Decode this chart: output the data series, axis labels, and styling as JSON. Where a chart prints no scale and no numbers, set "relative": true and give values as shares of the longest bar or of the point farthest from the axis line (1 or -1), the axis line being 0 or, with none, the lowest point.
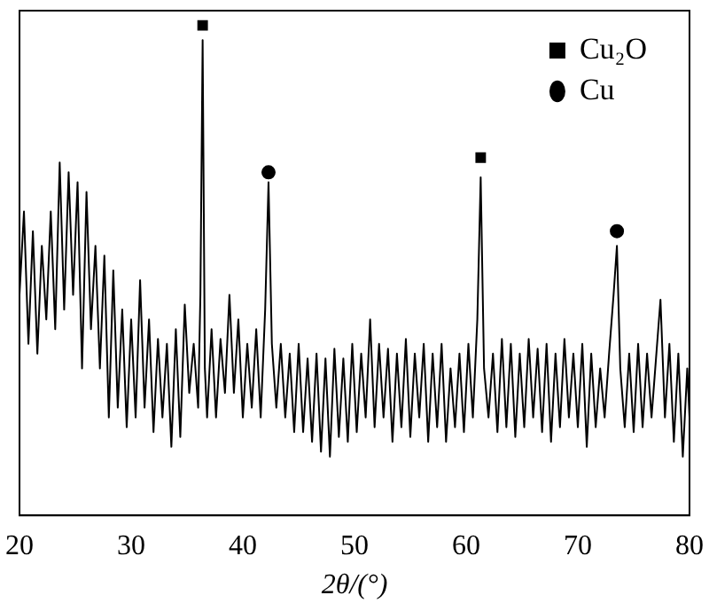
{
  "chart_data": {
    "type": "line",
    "relative": true,
    "xlabel": "2θ/(°)",
    "xlim": [
      20,
      80
    ],
    "xticks": [
      20,
      30,
      40,
      50,
      60,
      70,
      80
    ],
    "grid": false,
    "legend": "top right",
    "tick_labels": "x",
    "series": [
      {
        "type": "line",
        "color": "#000000",
        "marker": "none",
        "x": [
          20,
          20.4,
          20.8,
          21.2,
          21.6,
          22,
          22.4,
          22.8,
          23.2,
          23.6,
          24,
          24.4,
          24.8,
          25.2,
          25.6,
          26,
          26.4,
          26.8,
          27.2,
          27.6,
          28,
          28.4,
          28.8,
          29.2,
          29.6,
          30,
          30.4,
          30.8,
          31.2,
          31.6,
          32,
          32.4,
          32.8,
          33.2,
          33.6,
          34,
          34.4,
          34.8,
          35.2,
          35.6,
          36,
          36.2,
          36.4,
          36.6,
          36.8,
          37.2,
          37.6,
          38,
          38.4,
          38.8,
          39.2,
          39.6,
          40,
          40.4,
          40.8,
          41.2,
          41.6,
          42,
          42.3,
          42.6,
          43,
          43.4,
          43.8,
          44.2,
          44.6,
          45,
          45.4,
          45.8,
          46.2,
          46.6,
          47,
          47.4,
          47.8,
          48.2,
          48.6,
          49,
          49.4,
          49.8,
          50.2,
          50.6,
          51,
          51.4,
          51.8,
          52.2,
          52.6,
          53,
          53.4,
          53.8,
          54.2,
          54.6,
          55,
          55.4,
          55.8,
          56.2,
          56.6,
          57,
          57.4,
          57.8,
          58.2,
          58.6,
          59,
          59.4,
          59.8,
          60.2,
          60.6,
          61,
          61.3,
          61.6,
          62,
          62.4,
          62.8,
          63.2,
          63.6,
          64,
          64.4,
          64.8,
          65.2,
          65.6,
          66,
          66.4,
          66.8,
          67.2,
          67.6,
          68,
          68.4,
          68.8,
          69.2,
          69.6,
          70,
          70.4,
          70.8,
          71.2,
          71.6,
          72,
          72.4,
          72.8,
          73.2,
          73.5,
          73.8,
          74.2,
          74.6,
          75,
          75.4,
          75.8,
          76.2,
          76.6,
          77,
          77.4,
          77.8,
          78.2,
          78.6,
          79,
          79.4,
          79.8,
          80
        ],
        "values": [
          0.45,
          0.62,
          0.35,
          0.58,
          0.33,
          0.55,
          0.4,
          0.62,
          0.38,
          0.72,
          0.42,
          0.7,
          0.45,
          0.68,
          0.3,
          0.66,
          0.38,
          0.55,
          0.3,
          0.53,
          0.2,
          0.5,
          0.22,
          0.42,
          0.18,
          0.4,
          0.2,
          0.48,
          0.22,
          0.4,
          0.17,
          0.36,
          0.2,
          0.35,
          0.14,
          0.38,
          0.16,
          0.43,
          0.25,
          0.35,
          0.22,
          0.45,
          0.97,
          0.3,
          0.2,
          0.38,
          0.2,
          0.36,
          0.25,
          0.45,
          0.25,
          0.4,
          0.2,
          0.35,
          0.22,
          0.38,
          0.2,
          0.42,
          0.68,
          0.35,
          0.22,
          0.35,
          0.2,
          0.33,
          0.17,
          0.35,
          0.17,
          0.32,
          0.15,
          0.33,
          0.13,
          0.32,
          0.12,
          0.34,
          0.16,
          0.32,
          0.15,
          0.35,
          0.17,
          0.33,
          0.2,
          0.4,
          0.18,
          0.35,
          0.2,
          0.34,
          0.15,
          0.33,
          0.18,
          0.36,
          0.16,
          0.33,
          0.2,
          0.35,
          0.15,
          0.33,
          0.18,
          0.35,
          0.15,
          0.3,
          0.18,
          0.33,
          0.17,
          0.35,
          0.2,
          0.4,
          0.69,
          0.3,
          0.2,
          0.33,
          0.17,
          0.36,
          0.18,
          0.35,
          0.16,
          0.33,
          0.18,
          0.36,
          0.2,
          0.34,
          0.17,
          0.35,
          0.15,
          0.33,
          0.18,
          0.36,
          0.2,
          0.33,
          0.18,
          0.35,
          0.14,
          0.33,
          0.18,
          0.3,
          0.2,
          0.33,
          0.45,
          0.55,
          0.3,
          0.18,
          0.33,
          0.17,
          0.35,
          0.18,
          0.33,
          0.2,
          0.32,
          0.44,
          0.2,
          0.35,
          0.15,
          0.33,
          0.12,
          0.3,
          0.2
        ]
      },
      {
        "type": "scatter",
        "name": "Cu₂O",
        "color": "#000000",
        "marker": "square",
        "x": [
          36.4,
          61.3
        ],
        "values": [
          1,
          0.73
        ]
      },
      {
        "type": "scatter",
        "name": "Cu",
        "color": "#000000",
        "marker": "circle",
        "x": [
          42.3,
          73.5
        ],
        "values": [
          0.7,
          0.58
        ]
      }
    ]
  }
}
